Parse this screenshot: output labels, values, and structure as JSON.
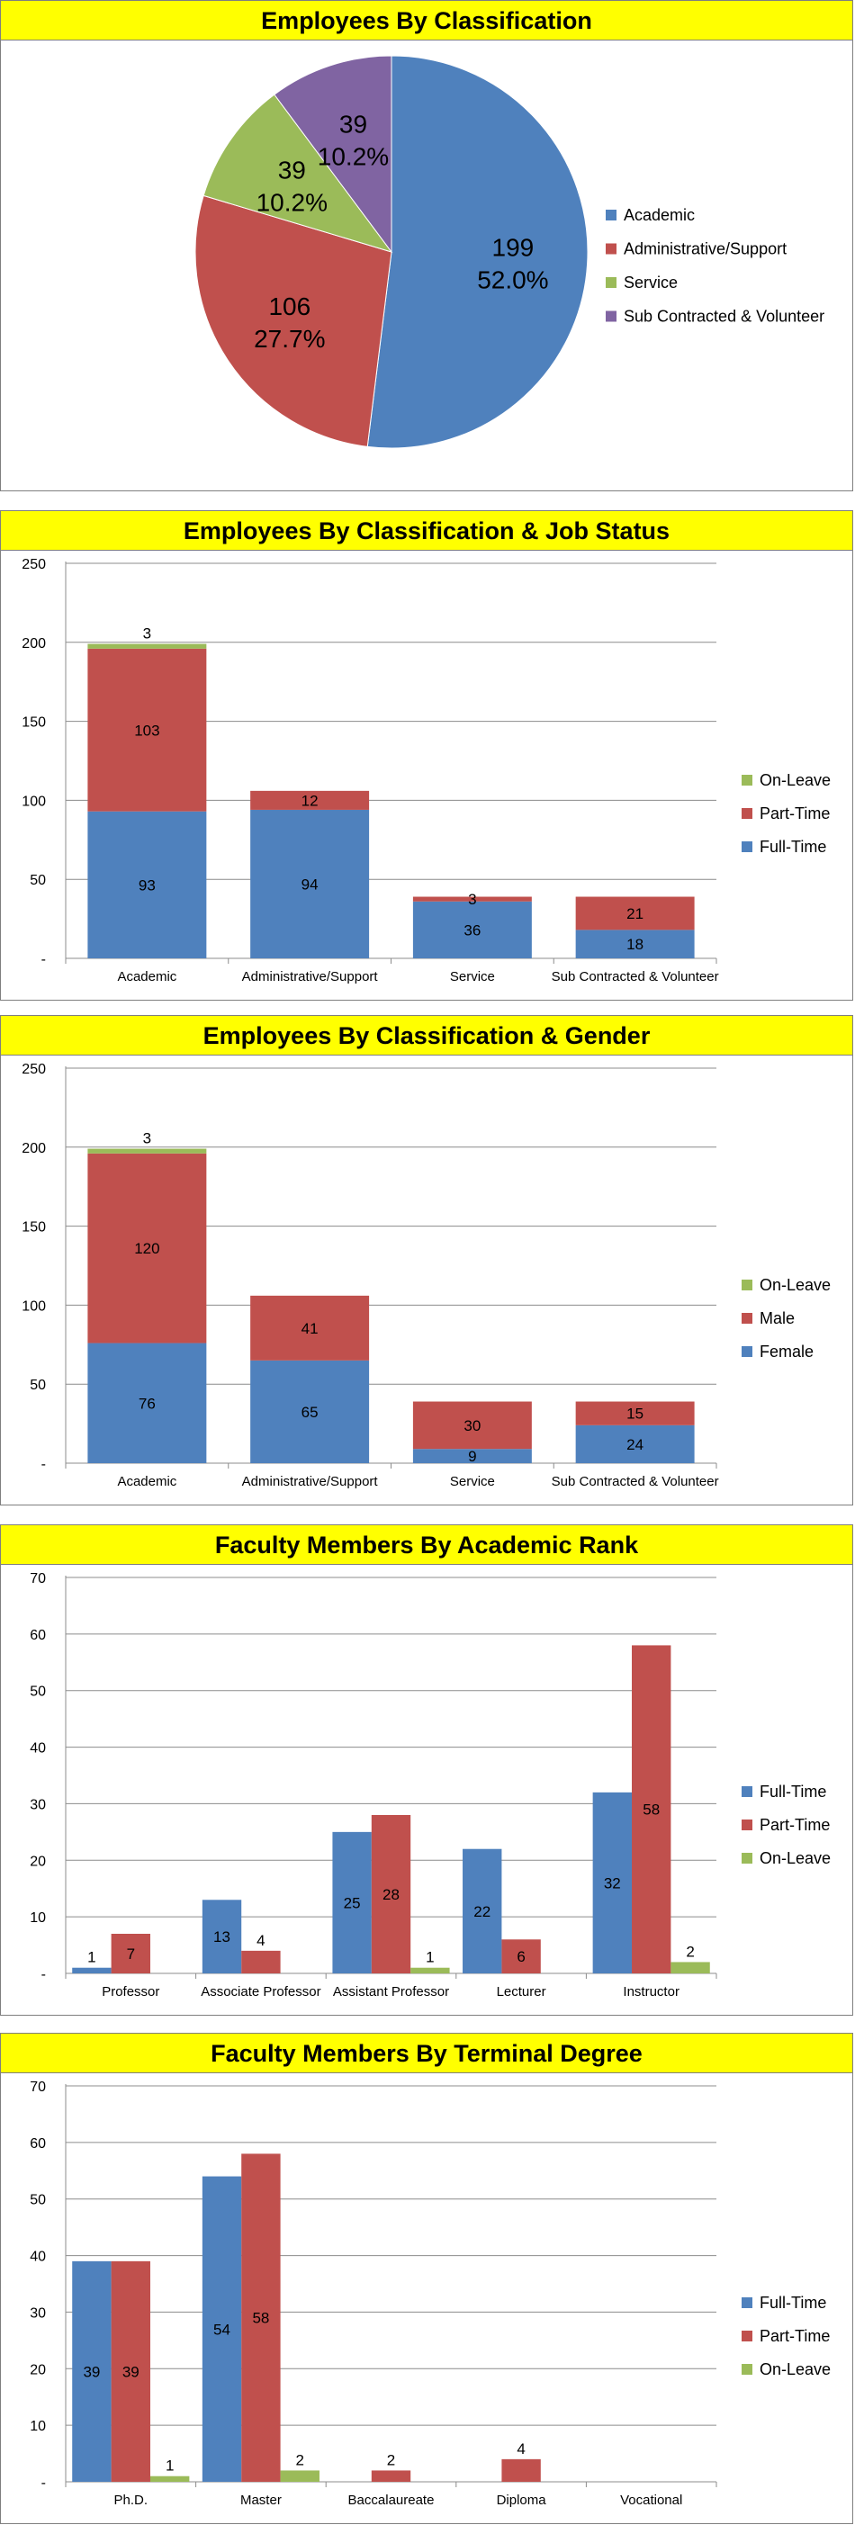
{
  "chart_data": [
    {
      "type": "pie",
      "title": "Employees By Classification",
      "categories": [
        "Academic",
        "Administrative/Support",
        "Service",
        "Sub Contracted & Volunteer"
      ],
      "values": [
        199,
        106,
        39,
        39
      ],
      "percent_labels": [
        "52.0%",
        "27.7%",
        "10.2%",
        "10.2%"
      ],
      "colors": [
        "#4f81bd",
        "#c0504d",
        "#9bbb59",
        "#8064a2"
      ],
      "legend": "right"
    },
    {
      "type": "bar",
      "stacked": true,
      "title": "Employees By Classification & Job Status",
      "categories": [
        "Academic",
        "Administrative/Support",
        "Service",
        "Sub Contracted & Volunteer"
      ],
      "series": [
        {
          "name": "Full-Time",
          "values": [
            93,
            94,
            36,
            18
          ],
          "color": "#4f81bd"
        },
        {
          "name": "Part-Time",
          "values": [
            103,
            12,
            3,
            21
          ],
          "color": "#c0504d"
        },
        {
          "name": "On-Leave",
          "values": [
            3,
            0,
            0,
            0
          ],
          "color": "#9bbb59"
        }
      ],
      "ylim": [
        0,
        250
      ],
      "yticks": [
        "-",
        "50",
        "100",
        "150",
        "200",
        "250"
      ],
      "grid": true,
      "legend": "right"
    },
    {
      "type": "bar",
      "stacked": true,
      "title": "Employees By Classification & Gender",
      "categories": [
        "Academic",
        "Administrative/Support",
        "Service",
        "Sub Contracted & Volunteer"
      ],
      "series": [
        {
          "name": "Female",
          "values": [
            76,
            65,
            9,
            24
          ],
          "color": "#4f81bd"
        },
        {
          "name": "Male",
          "values": [
            120,
            41,
            30,
            15
          ],
          "color": "#c0504d"
        },
        {
          "name": "On-Leave",
          "values": [
            3,
            0,
            0,
            0
          ],
          "color": "#9bbb59"
        }
      ],
      "ylim": [
        0,
        250
      ],
      "yticks": [
        "-",
        "50",
        "100",
        "150",
        "200",
        "250"
      ],
      "grid": true,
      "legend": "right"
    },
    {
      "type": "bar",
      "stacked": false,
      "title": "Faculty Members By Academic Rank",
      "categories": [
        "Professor",
        "Associate Professor",
        "Assistant Professor",
        "Lecturer",
        "Instructor"
      ],
      "series": [
        {
          "name": "Full-Time",
          "values": [
            1,
            13,
            25,
            22,
            32
          ],
          "color": "#4f81bd"
        },
        {
          "name": "Part-Time",
          "values": [
            7,
            4,
            28,
            6,
            58
          ],
          "color": "#c0504d"
        },
        {
          "name": "On-Leave",
          "values": [
            0,
            0,
            1,
            0,
            2
          ],
          "color": "#9bbb59"
        }
      ],
      "labels": [
        [
          "1",
          "13",
          "25",
          "22",
          "32"
        ],
        [
          "7",
          "4",
          "28",
          "6",
          "58"
        ],
        [
          "",
          "",
          "1",
          "",
          "2"
        ]
      ],
      "ylim": [
        0,
        70
      ],
      "yticks": [
        "-",
        "10",
        "20",
        "30",
        "40",
        "50",
        "60",
        "70"
      ],
      "grid": true,
      "legend": "right"
    },
    {
      "type": "bar",
      "stacked": false,
      "title": "Faculty Members By Terminal Degree",
      "categories": [
        "Ph.D.",
        "Master",
        "Baccalaureate",
        "Diploma",
        "Vocational"
      ],
      "series": [
        {
          "name": "Full-Time",
          "values": [
            39,
            54,
            0,
            0,
            0
          ],
          "color": "#4f81bd"
        },
        {
          "name": "Part-Time",
          "values": [
            39,
            58,
            2,
            4,
            0
          ],
          "color": "#c0504d"
        },
        {
          "name": "On-Leave",
          "values": [
            1,
            2,
            0,
            0,
            0
          ],
          "color": "#9bbb59"
        }
      ],
      "labels": [
        [
          "39",
          "54",
          "",
          "",
          ""
        ],
        [
          "39",
          "58",
          "2",
          "4",
          ""
        ],
        [
          "1",
          "2",
          "",
          "",
          ""
        ]
      ],
      "ylim": [
        0,
        70
      ],
      "yticks": [
        "-",
        "10",
        "20",
        "30",
        "40",
        "50",
        "60",
        "70"
      ],
      "grid": true,
      "legend": "right"
    }
  ]
}
